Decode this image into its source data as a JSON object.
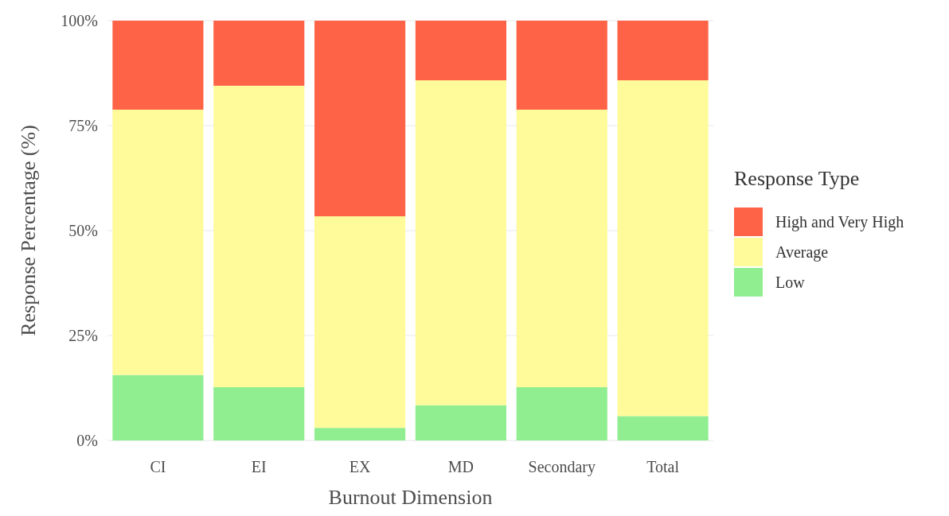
{
  "chart_data": {
    "type": "bar",
    "stacked": true,
    "xlabel": "Burnout Dimension",
    "ylabel": "Response Percentage (%)",
    "legend_title": "Response Type",
    "legend": "right",
    "grid": "y",
    "categories": [
      "CI",
      "EI",
      "EX",
      "MD",
      "Secondary",
      "Total"
    ],
    "series": [
      {
        "name": "Low",
        "color": "#90ee90",
        "values": [
          15.6,
          12.7,
          3.0,
          8.4,
          12.7,
          5.8
        ]
      },
      {
        "name": "Average",
        "color": "#fffa9a",
        "values": [
          63.2,
          71.8,
          50.4,
          77.4,
          66.1,
          80.0
        ]
      },
      {
        "name": "High and Very High",
        "color": "#ff6347",
        "values": [
          21.2,
          15.5,
          46.6,
          14.2,
          21.2,
          14.2
        ]
      }
    ],
    "ylim": [
      0,
      100
    ],
    "yticks": [
      {
        "value": 0,
        "label": "0%"
      },
      {
        "value": 25,
        "label": "25%"
      },
      {
        "value": 50,
        "label": "50%"
      },
      {
        "value": 75,
        "label": "75%"
      },
      {
        "value": 100,
        "label": "100%"
      }
    ]
  }
}
